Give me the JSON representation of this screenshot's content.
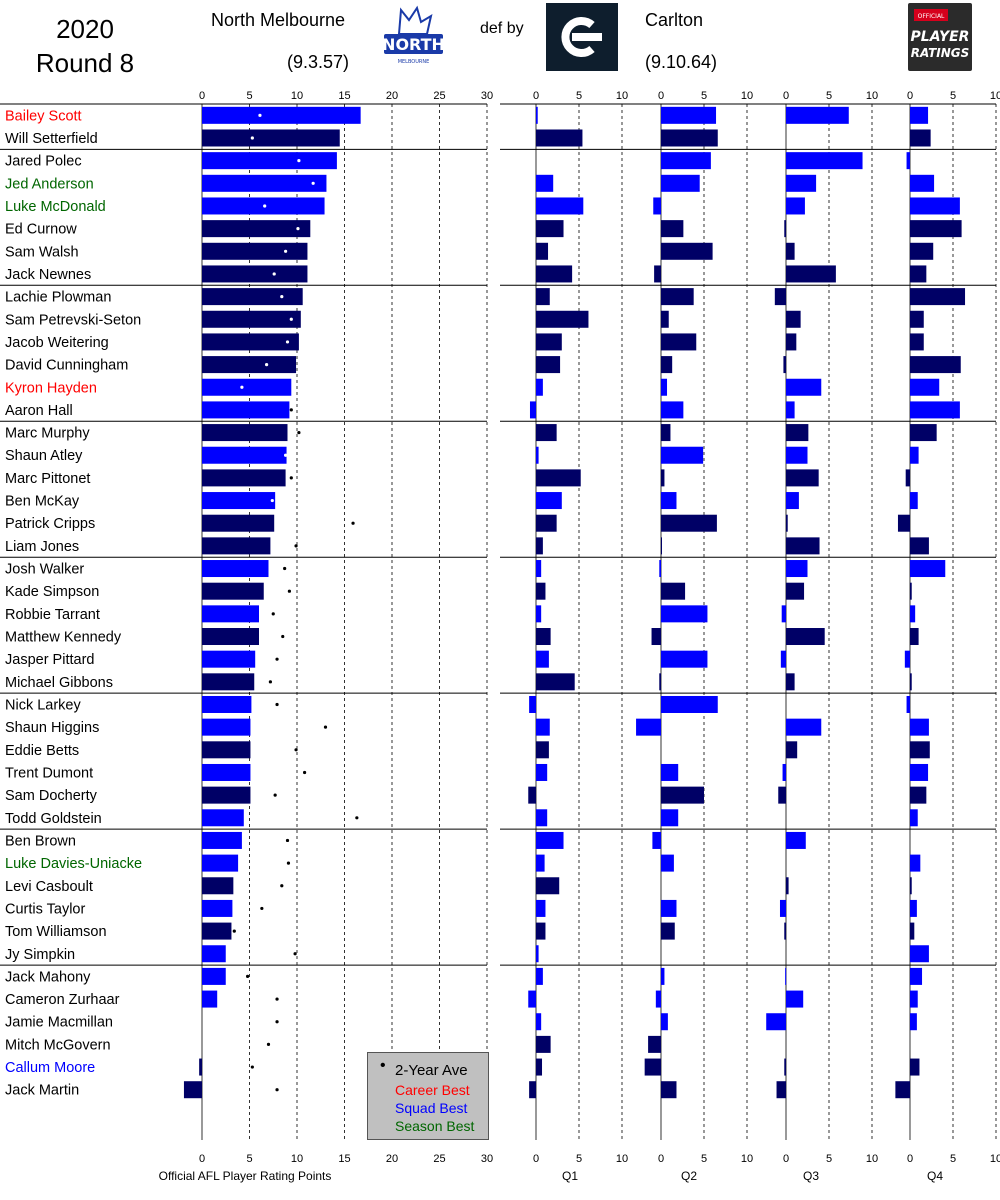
{
  "header": {
    "year": "2020",
    "round": "Round 8",
    "home_team": "North Melbourne",
    "home_score": "(9.3.57)",
    "result": "def by",
    "away_team": "Carlton",
    "away_score": "(9.10.64)",
    "logo_home_text": "NORTH",
    "logo_home_subtext": "MELBOURNE",
    "logo_ratings_badge": "OFFICIAL",
    "logo_ratings_line1": "PLAYER",
    "logo_ratings_line2": "RATINGS"
  },
  "legend": {
    "ave": "2-Year Ave",
    "career": "Career Best",
    "squad": "Squad Best",
    "season": "Season Best"
  },
  "colors": {
    "carlton": "#000066",
    "north": "#0000ff",
    "career": "#ff0000",
    "squad": "#0000ff",
    "season": "#006600"
  },
  "chart_data": {
    "type": "bar",
    "orientation": "horizontal",
    "xlabel": "Official AFL Player Rating Points",
    "main_xlim": [
      0,
      30
    ],
    "main_ticks": [
      0,
      5,
      10,
      15,
      20,
      25,
      30
    ],
    "quarter_xlim": [
      0,
      10
    ],
    "quarter_ticks": [
      0,
      5,
      10
    ],
    "quarter_labels": [
      "Q1",
      "Q2",
      "Q3",
      "Q4"
    ],
    "group_sizes": [
      2,
      6,
      6,
      6,
      6,
      6,
      6,
      6
    ],
    "players": [
      {
        "name": "Bailey Scott",
        "team": "north",
        "name_color": "career",
        "total": 16.7,
        "ave": 6.1,
        "q": [
          0.2,
          6.4,
          7.3,
          2.1
        ]
      },
      {
        "name": "Will Setterfield",
        "team": "carlton",
        "name_color": "",
        "total": 14.5,
        "ave": 5.3,
        "q": [
          5.4,
          6.6,
          0.0,
          2.4
        ]
      },
      {
        "name": "Jared Polec",
        "team": "north",
        "name_color": "",
        "total": 14.2,
        "ave": 10.2,
        "q": [
          0.0,
          5.8,
          8.9,
          -0.4
        ]
      },
      {
        "name": "Jed Anderson",
        "team": "north",
        "name_color": "season",
        "total": 13.1,
        "ave": 11.7,
        "q": [
          2.0,
          4.5,
          3.5,
          2.8
        ]
      },
      {
        "name": "Luke McDonald",
        "team": "north",
        "name_color": "season",
        "total": 12.9,
        "ave": 6.6,
        "q": [
          5.5,
          -0.9,
          2.2,
          5.8
        ]
      },
      {
        "name": "Ed Curnow",
        "team": "carlton",
        "name_color": "",
        "total": 11.4,
        "ave": 10.1,
        "q": [
          3.2,
          2.6,
          -0.2,
          6.0
        ]
      },
      {
        "name": "Sam Walsh",
        "team": "carlton",
        "name_color": "",
        "total": 11.1,
        "ave": 8.8,
        "q": [
          1.4,
          6.0,
          1.0,
          2.7
        ]
      },
      {
        "name": "Jack Newnes",
        "team": "carlton",
        "name_color": "",
        "total": 11.1,
        "ave": 7.6,
        "q": [
          4.2,
          -0.8,
          5.8,
          1.9
        ]
      },
      {
        "name": "Lachie Plowman",
        "team": "carlton",
        "name_color": "",
        "total": 10.6,
        "ave": 8.4,
        "q": [
          1.6,
          3.8,
          -1.3,
          6.4
        ]
      },
      {
        "name": "Sam Petrevski-Seton",
        "team": "carlton",
        "name_color": "",
        "total": 10.4,
        "ave": 9.4,
        "q": [
          6.1,
          0.9,
          1.7,
          1.6
        ]
      },
      {
        "name": "Jacob Weitering",
        "team": "carlton",
        "name_color": "",
        "total": 10.2,
        "ave": 9.0,
        "q": [
          3.0,
          4.1,
          1.2,
          1.6
        ]
      },
      {
        "name": "David Cunningham",
        "team": "carlton",
        "name_color": "",
        "total": 9.9,
        "ave": 6.8,
        "q": [
          2.8,
          1.3,
          -0.3,
          5.9
        ]
      },
      {
        "name": "Kyron Hayden",
        "team": "north",
        "name_color": "career",
        "total": 9.4,
        "ave": 4.2,
        "q": [
          0.8,
          0.7,
          4.1,
          3.4
        ]
      },
      {
        "name": "Aaron Hall",
        "team": "north",
        "name_color": "",
        "total": 9.2,
        "ave": 9.4,
        "q": [
          -0.7,
          2.6,
          1.0,
          5.8
        ]
      },
      {
        "name": "Marc Murphy",
        "team": "carlton",
        "name_color": "",
        "total": 9.0,
        "ave": 10.2,
        "q": [
          2.4,
          1.1,
          2.6,
          3.1
        ]
      },
      {
        "name": "Shaun Atley",
        "team": "north",
        "name_color": "",
        "total": 8.9,
        "ave": 8.8,
        "q": [
          0.3,
          4.9,
          2.5,
          1.0
        ]
      },
      {
        "name": "Marc Pittonet",
        "team": "carlton",
        "name_color": "",
        "total": 8.8,
        "ave": 9.4,
        "q": [
          5.2,
          0.4,
          3.8,
          -0.5
        ]
      },
      {
        "name": "Ben McKay",
        "team": "north",
        "name_color": "",
        "total": 7.7,
        "ave": 7.4,
        "q": [
          3.0,
          1.8,
          1.5,
          0.9
        ]
      },
      {
        "name": "Patrick Cripps",
        "team": "carlton",
        "name_color": "",
        "total": 7.6,
        "ave": 15.9,
        "q": [
          2.4,
          6.5,
          0.2,
          -1.4
        ]
      },
      {
        "name": "Liam Jones",
        "team": "carlton",
        "name_color": "",
        "total": 7.2,
        "ave": 9.9,
        "q": [
          0.8,
          0.1,
          3.9,
          2.2
        ]
      },
      {
        "name": "Josh Walker",
        "team": "north",
        "name_color": "",
        "total": 7.0,
        "ave": 8.7,
        "q": [
          0.6,
          -0.2,
          2.5,
          4.1
        ]
      },
      {
        "name": "Kade Simpson",
        "team": "carlton",
        "name_color": "",
        "total": 6.5,
        "ave": 9.2,
        "q": [
          1.1,
          2.8,
          2.1,
          0.2
        ]
      },
      {
        "name": "Robbie Tarrant",
        "team": "north",
        "name_color": "",
        "total": 6.0,
        "ave": 7.5,
        "q": [
          0.6,
          5.4,
          -0.5,
          0.6
        ]
      },
      {
        "name": "Matthew Kennedy",
        "team": "carlton",
        "name_color": "",
        "total": 6.0,
        "ave": 8.5,
        "q": [
          1.7,
          -1.1,
          4.5,
          1.0
        ]
      },
      {
        "name": "Jasper Pittard",
        "team": "north",
        "name_color": "",
        "total": 5.6,
        "ave": 7.9,
        "q": [
          1.5,
          5.4,
          -0.6,
          -0.6
        ]
      },
      {
        "name": "Michael Gibbons",
        "team": "carlton",
        "name_color": "",
        "total": 5.5,
        "ave": 7.2,
        "q": [
          4.5,
          -0.2,
          1.0,
          0.2
        ]
      },
      {
        "name": "Nick Larkey",
        "team": "north",
        "name_color": "",
        "total": 5.2,
        "ave": 7.9,
        "q": [
          -0.8,
          6.6,
          0.0,
          -0.4
        ]
      },
      {
        "name": "Shaun Higgins",
        "team": "north",
        "name_color": "",
        "total": 5.1,
        "ave": 13.0,
        "q": [
          1.6,
          -2.9,
          4.1,
          2.2
        ]
      },
      {
        "name": "Eddie Betts",
        "team": "carlton",
        "name_color": "",
        "total": 5.1,
        "ave": 9.9,
        "q": [
          1.5,
          0.0,
          1.3,
          2.3
        ]
      },
      {
        "name": "Trent Dumont",
        "team": "north",
        "name_color": "",
        "total": 5.1,
        "ave": 10.8,
        "q": [
          1.3,
          2.0,
          -0.4,
          2.1
        ]
      },
      {
        "name": "Sam Docherty",
        "team": "carlton",
        "name_color": "",
        "total": 5.1,
        "ave": 7.7,
        "q": [
          -0.9,
          5.0,
          -0.9,
          1.9
        ]
      },
      {
        "name": "Todd Goldstein",
        "team": "north",
        "name_color": "",
        "total": 4.4,
        "ave": 16.3,
        "q": [
          1.3,
          2.0,
          0.0,
          0.9
        ]
      },
      {
        "name": "Ben Brown",
        "team": "north",
        "name_color": "",
        "total": 4.2,
        "ave": 9.0,
        "q": [
          3.2,
          -1.0,
          2.3,
          0.0
        ]
      },
      {
        "name": "Luke Davies-Uniacke",
        "team": "north",
        "name_color": "season",
        "total": 3.8,
        "ave": 9.1,
        "q": [
          1.0,
          1.5,
          0.0,
          1.2
        ]
      },
      {
        "name": "Levi Casboult",
        "team": "carlton",
        "name_color": "",
        "total": 3.3,
        "ave": 8.4,
        "q": [
          2.7,
          0.0,
          0.3,
          0.2
        ]
      },
      {
        "name": "Curtis Taylor",
        "team": "north",
        "name_color": "",
        "total": 3.2,
        "ave": 6.3,
        "q": [
          1.1,
          1.8,
          -0.7,
          0.8
        ]
      },
      {
        "name": "Tom Williamson",
        "team": "carlton",
        "name_color": "",
        "total": 3.1,
        "ave": 3.4,
        "q": [
          1.1,
          1.6,
          -0.2,
          0.5
        ]
      },
      {
        "name": "Jy Simpkin",
        "team": "north",
        "name_color": "",
        "total": 2.5,
        "ave": 9.8,
        "q": [
          0.3,
          0.0,
          0.0,
          2.2
        ]
      },
      {
        "name": "Jack Mahony",
        "team": "north",
        "name_color": "",
        "total": 2.5,
        "ave": 4.8,
        "q": [
          0.8,
          0.4,
          -0.1,
          1.4
        ]
      },
      {
        "name": "Cameron Zurhaar",
        "team": "north",
        "name_color": "",
        "total": 1.6,
        "ave": 7.9,
        "q": [
          -0.9,
          -0.6,
          2.0,
          0.9
        ]
      },
      {
        "name": "Jamie Macmillan",
        "team": "north",
        "name_color": "",
        "total": 0.0,
        "ave": 7.9,
        "q": [
          0.6,
          0.8,
          -2.3,
          0.8
        ]
      },
      {
        "name": "Mitch McGovern",
        "team": "carlton",
        "name_color": "",
        "total": 0.0,
        "ave": 7.0,
        "q": [
          1.7,
          -1.5,
          0.0,
          0.0
        ]
      },
      {
        "name": "Callum Moore",
        "team": "carlton",
        "name_color": "squad",
        "total": -0.3,
        "ave": 5.3,
        "q": [
          0.7,
          -1.9,
          -0.2,
          1.1
        ]
      },
      {
        "name": "Jack Martin",
        "team": "carlton",
        "name_color": "",
        "total": -1.9,
        "ave": 7.9,
        "q": [
          -0.8,
          1.8,
          -1.1,
          -1.7
        ]
      }
    ]
  }
}
